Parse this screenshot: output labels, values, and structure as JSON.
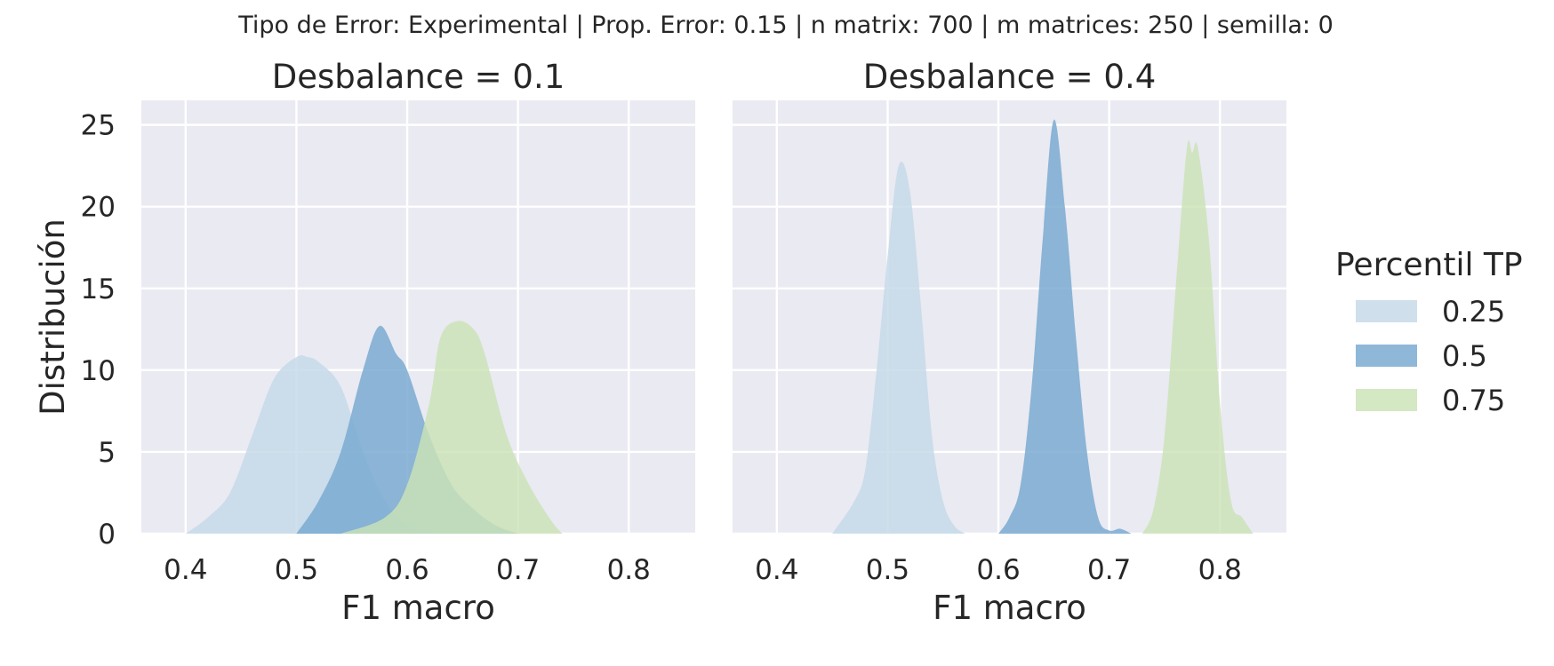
{
  "chart_data": {
    "type": "area",
    "suptitle": "Tipo de Error: Experimental | Prop. Error: 0.15 | n matrix: 700 | m matrices: 250 | semilla: 0",
    "xlabel": "F1 macro",
    "ylabel": "Distribución",
    "xlim": [
      0.36,
      0.86
    ],
    "ylim": [
      0,
      26.5
    ],
    "xticks": [
      "0.4",
      "0.5",
      "0.6",
      "0.7",
      "0.8"
    ],
    "yticks": [
      "0",
      "5",
      "10",
      "15",
      "20",
      "25"
    ],
    "grid": true,
    "legend": {
      "title": "Percentil TP",
      "placement": "right",
      "entries": [
        "0.25",
        "0.5",
        "0.75"
      ]
    },
    "colors": {
      "0.25": "#c4d9e8",
      "0.5": "#7aaad1",
      "0.75": "#cae3b6",
      "panel_background": "#eaeaf2",
      "grid": "#ffffff"
    },
    "panels": [
      {
        "title": "Desbalance = 0.1",
        "series": [
          {
            "name": "0.25",
            "x": [
              0.4,
              0.42,
              0.44,
              0.46,
              0.48,
              0.5,
              0.51,
              0.52,
              0.54,
              0.56,
              0.58,
              0.6,
              0.62
            ],
            "y": [
              0,
              1,
              2.5,
              6,
              9.5,
              10.8,
              10.8,
              10.5,
              9,
              5,
              2,
              0.5,
              0
            ]
          },
          {
            "name": "0.5",
            "x": [
              0.5,
              0.52,
              0.54,
              0.56,
              0.575,
              0.59,
              0.6,
              0.62,
              0.64,
              0.66,
              0.68,
              0.7
            ],
            "y": [
              0,
              2,
              5,
              10,
              12.7,
              11,
              10,
              6,
              3,
              1.5,
              0.5,
              0
            ]
          },
          {
            "name": "0.75",
            "x": [
              0.54,
              0.58,
              0.6,
              0.62,
              0.63,
              0.645,
              0.66,
              0.67,
              0.69,
              0.71,
              0.73,
              0.74
            ],
            "y": [
              0,
              1,
              3,
              8,
              12,
              13,
              12.5,
              11,
              6,
              3,
              0.8,
              0
            ]
          }
        ]
      },
      {
        "title": "Desbalance = 0.4",
        "series": [
          {
            "name": "0.25",
            "x": [
              0.45,
              0.47,
              0.48,
              0.49,
              0.5,
              0.51,
              0.52,
              0.53,
              0.54,
              0.55,
              0.56,
              0.57
            ],
            "y": [
              0,
              2,
              4,
              10,
              17,
              22.5,
              21,
              14,
              6,
              2,
              0.5,
              0
            ]
          },
          {
            "name": "0.5",
            "x": [
              0.6,
              0.61,
              0.62,
              0.63,
              0.64,
              0.65,
              0.66,
              0.67,
              0.68,
              0.69,
              0.7,
              0.71,
              0.72
            ],
            "y": [
              0,
              1,
              3,
              9,
              18,
              25.3,
              20,
              12,
              5,
              1,
              0.2,
              0.3,
              0
            ]
          },
          {
            "name": "0.75",
            "x": [
              0.73,
              0.74,
              0.75,
              0.76,
              0.77,
              0.775,
              0.78,
              0.79,
              0.8,
              0.81,
              0.82,
              0.83
            ],
            "y": [
              0,
              1.5,
              6,
              15,
              23.5,
              23.3,
              23.6,
              18,
              8,
              2,
              1,
              0
            ]
          }
        ]
      }
    ]
  }
}
